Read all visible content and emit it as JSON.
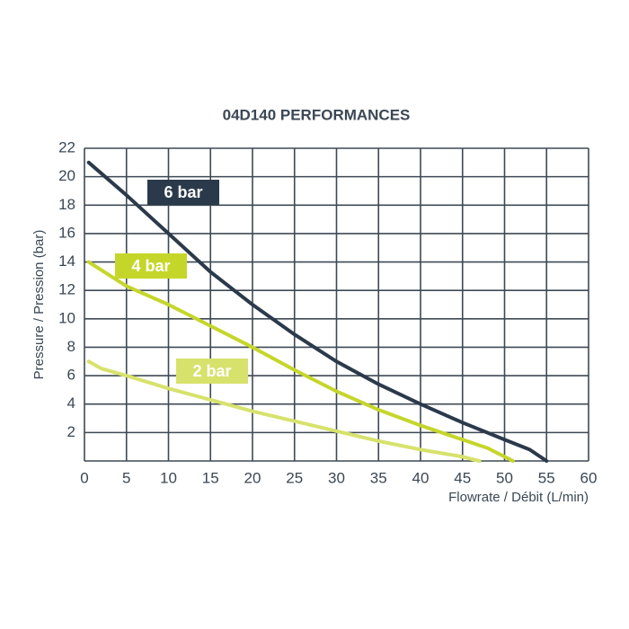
{
  "chart_data": {
    "type": "line",
    "title": "04D140 PERFORMANCES",
    "x_label": "Flowrate / Débit (L/min)",
    "y_label": "Pressure / Pression (bar)",
    "xlim": [
      0,
      60
    ],
    "xticks": [
      0,
      5,
      10,
      15,
      20,
      25,
      30,
      35,
      40,
      45,
      50,
      55,
      60
    ],
    "ylim": [
      0,
      22
    ],
    "yticks": [
      2,
      4,
      6,
      8,
      10,
      12,
      14,
      16,
      18,
      20,
      22
    ],
    "grid": true,
    "series": [
      {
        "name": "6 bar",
        "color": "#2b3a4b",
        "x": [
          0.5,
          5,
          10,
          15,
          20,
          25,
          30,
          35,
          40,
          45,
          50,
          53,
          55
        ],
        "values": [
          21,
          18.7,
          16,
          13.3,
          11,
          8.9,
          7,
          5.4,
          4,
          2.7,
          1.5,
          0.8,
          0
        ]
      },
      {
        "name": "4 bar",
        "color": "#c5d62a",
        "x": [
          0.5,
          5,
          10,
          15,
          20,
          25,
          30,
          35,
          40,
          45,
          48,
          51
        ],
        "values": [
          14,
          12.3,
          11,
          9.5,
          8,
          6.4,
          4.9,
          3.6,
          2.5,
          1.5,
          0.9,
          0
        ]
      },
      {
        "name": "2 bar",
        "color": "#d7e26c",
        "x": [
          0.5,
          2,
          5,
          10,
          15,
          20,
          25,
          30,
          35,
          40,
          45,
          47
        ],
        "values": [
          7,
          6.5,
          6,
          5.1,
          4.3,
          3.5,
          2.8,
          2.1,
          1.4,
          0.8,
          0.3,
          0
        ]
      }
    ]
  }
}
